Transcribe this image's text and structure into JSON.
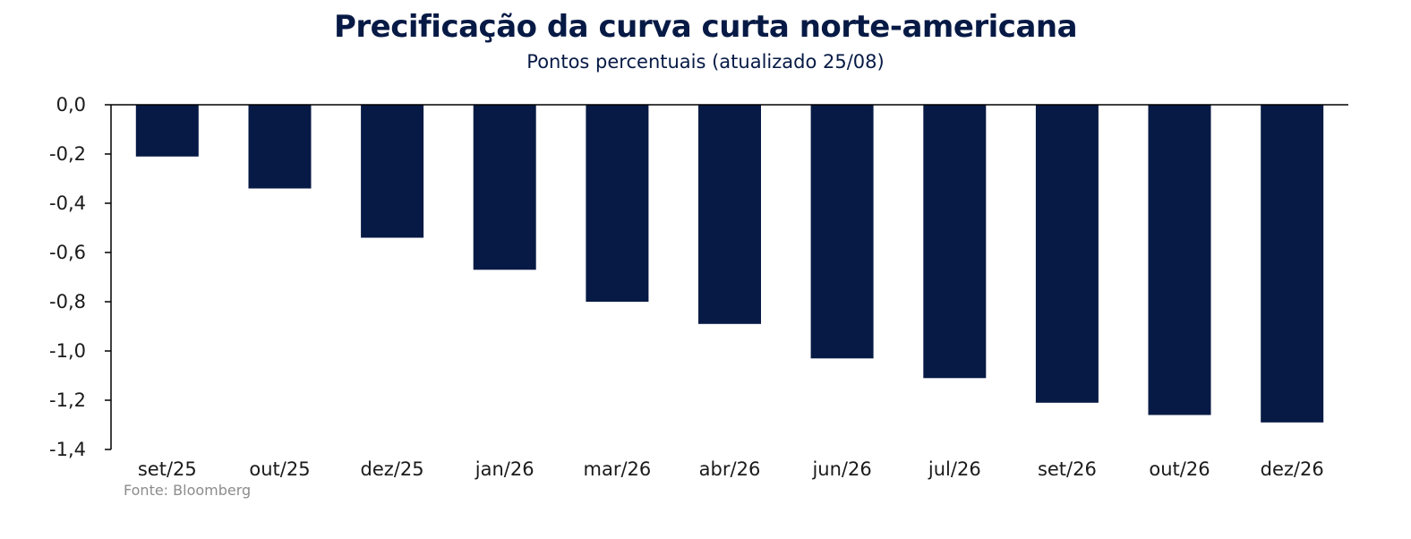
{
  "chart_data": {
    "type": "bar",
    "title": "Precificação da curva curta norte-americana",
    "subtitle": "Pontos percentuais (atualizado 25/08)",
    "categories": [
      "set/25",
      "out/25",
      "dez/25",
      "jan/26",
      "mar/26",
      "abr/26",
      "jun/26",
      "jul/26",
      "set/26",
      "out/26",
      "dez/26"
    ],
    "values": [
      -0.21,
      -0.34,
      -0.54,
      -0.67,
      -0.8,
      -0.89,
      -1.03,
      -1.11,
      -1.21,
      -1.26,
      -1.29
    ],
    "yticks": [
      "0,0",
      "-0,2",
      "-0,4",
      "-0,6",
      "-0,8",
      "-1,0",
      "-1,2",
      "-1,4"
    ],
    "ytick_values": [
      0,
      -0.2,
      -0.4,
      -0.6,
      -0.8,
      -1.0,
      -1.2,
      -1.4
    ],
    "ylim": [
      -1.4,
      0
    ],
    "xlabel": "",
    "ylabel": "",
    "grid": false,
    "legend": "none",
    "source": "Fonte: Bloomberg",
    "bar_color": "#071a45",
    "axis_color": "#000000"
  }
}
